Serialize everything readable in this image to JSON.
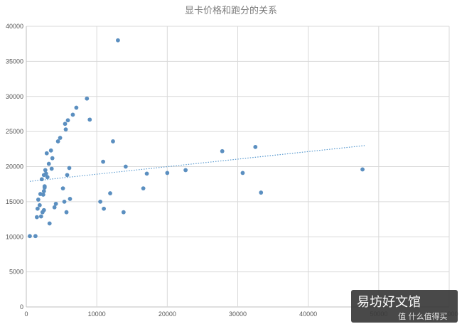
{
  "chart_data": {
    "type": "scatter",
    "title": "显卡价格和跑分的关系",
    "xlabel": "",
    "ylabel": "",
    "xlim": [
      0,
      60000
    ],
    "ylim": [
      0,
      40000
    ],
    "xticks": [
      0,
      10000,
      20000,
      30000,
      40000,
      50000,
      60000
    ],
    "yticks": [
      0,
      5000,
      10000,
      15000,
      20000,
      25000,
      30000,
      35000,
      40000
    ],
    "grid": true,
    "legend": "none",
    "point_color": "#5b8fc0",
    "trend_color": "#5b9bd0",
    "trendline": {
      "type": "linear",
      "style": "dotted",
      "points": [
        [
          500,
          17900
        ],
        [
          48000,
          23000
        ]
      ]
    },
    "points": [
      [
        500,
        10100
      ],
      [
        1300,
        10100
      ],
      [
        1500,
        12800
      ],
      [
        1600,
        14000
      ],
      [
        1700,
        15300
      ],
      [
        1900,
        14500
      ],
      [
        2000,
        16100
      ],
      [
        2100,
        12900
      ],
      [
        2200,
        18200
      ],
      [
        2300,
        13500
      ],
      [
        2400,
        16000
      ],
      [
        2500,
        13800
      ],
      [
        2500,
        18800
      ],
      [
        2500,
        16500
      ],
      [
        2600,
        17200
      ],
      [
        2700,
        19500
      ],
      [
        2600,
        17000
      ],
      [
        2800,
        19000
      ],
      [
        2900,
        21900
      ],
      [
        3000,
        18500
      ],
      [
        3200,
        20400
      ],
      [
        3300,
        11900
      ],
      [
        3500,
        22300
      ],
      [
        3600,
        19700
      ],
      [
        3700,
        21200
      ],
      [
        4000,
        14200
      ],
      [
        4200,
        14700
      ],
      [
        4500,
        23600
      ],
      [
        4800,
        24100
      ],
      [
        5200,
        16900
      ],
      [
        5400,
        15000
      ],
      [
        5500,
        26100
      ],
      [
        5600,
        25300
      ],
      [
        5700,
        13500
      ],
      [
        5800,
        18800
      ],
      [
        5900,
        26600
      ],
      [
        6100,
        19800
      ],
      [
        6200,
        15400
      ],
      [
        6600,
        27400
      ],
      [
        7100,
        28400
      ],
      [
        8600,
        29700
      ],
      [
        9000,
        26700
      ],
      [
        10500,
        15000
      ],
      [
        10900,
        20700
      ],
      [
        11000,
        14000
      ],
      [
        11900,
        16200
      ],
      [
        12300,
        23600
      ],
      [
        13000,
        38000
      ],
      [
        13800,
        13500
      ],
      [
        14100,
        20000
      ],
      [
        16600,
        16900
      ],
      [
        17100,
        19000
      ],
      [
        20000,
        19100
      ],
      [
        22600,
        19500
      ],
      [
        27800,
        22200
      ],
      [
        30700,
        19100
      ],
      [
        32500,
        22800
      ],
      [
        33300,
        16300
      ],
      [
        47700,
        19600
      ]
    ]
  },
  "watermark": {
    "text": "易坊好文馆",
    "sub": "值 什么值得买",
    "bg_color": "#3a3a3a"
  }
}
